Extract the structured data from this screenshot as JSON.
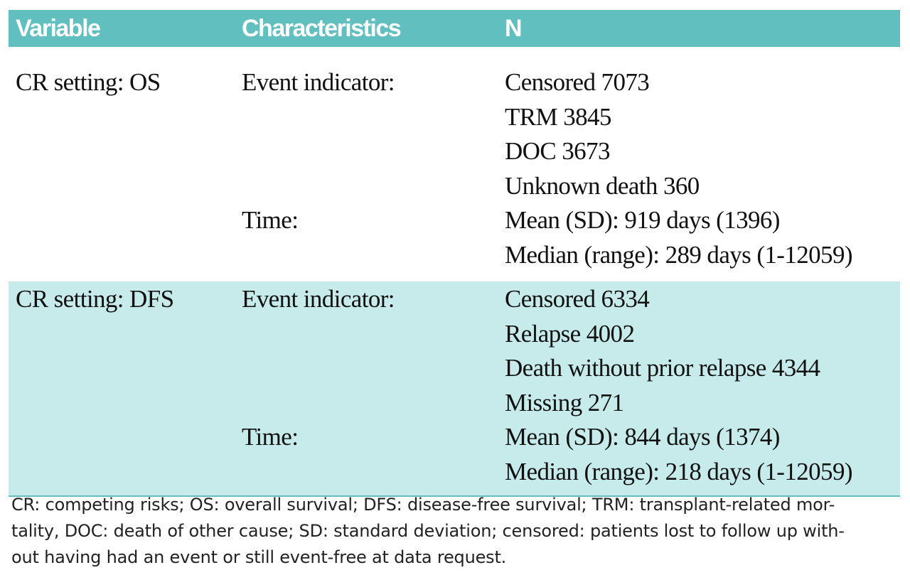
{
  "header": {
    "col1": "Variable",
    "col2": "Characteristics",
    "col3": "N"
  },
  "rows": [
    {
      "variable": "CR setting: OS",
      "event_label": "Event indicator:",
      "event_values": [
        "Censored 7073",
        "TRM 3845",
        "DOC 3673",
        "Unknown death 360"
      ],
      "time_label": "Time:",
      "time_values": [
        "Mean (SD): 919 days (1396)",
        "Median (range): 289 days (1-12059)"
      ]
    },
    {
      "variable": "CR setting: DFS",
      "event_label": "Event indicator:",
      "event_values": [
        "Censored 6334",
        "Relapse 4002",
        "Death without prior relapse 4344",
        "Missing 271"
      ],
      "time_label": "Time:",
      "time_values": [
        "Mean (SD): 844 days (1374)",
        "Median (range): 218 days (1-12059)"
      ]
    }
  ],
  "footnote": {
    "lines": [
      "CR: competing risks; OS: overall survival; DFS: disease-free survival; TRM: transplant-related mor-",
      "tality, DOC: death of other cause; SD: standard deviation; censored: patients lost to follow up with-",
      "out having had an event or still event-free at data request."
    ]
  }
}
